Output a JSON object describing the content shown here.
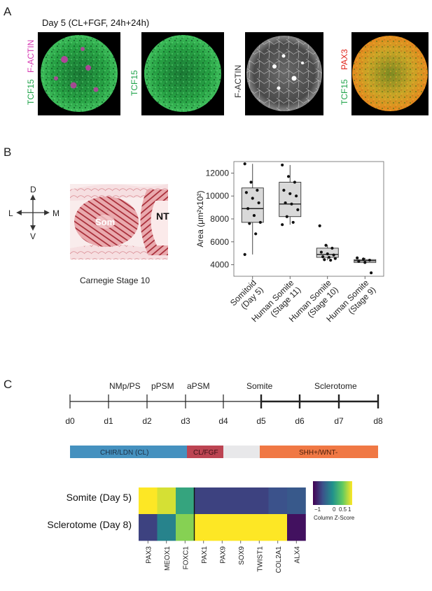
{
  "panel_a": {
    "letter": "A",
    "title": "Day 5 (CL+FGF, 24h+24h)",
    "images": [
      {
        "labels": [
          {
            "text": "TCF15",
            "color": "#1fa34a"
          },
          {
            "text": "F-ACTIN",
            "color": "#d63bb3"
          }
        ]
      },
      {
        "labels": [
          {
            "text": "TCF15",
            "color": "#1fa34a"
          }
        ]
      },
      {
        "labels": [
          {
            "text": "F-ACTIN",
            "color": "#333333"
          }
        ]
      },
      {
        "labels": [
          {
            "text": "TCF15",
            "color": "#1fa34a"
          },
          {
            "text": "PAX3",
            "color": "#e0261c"
          }
        ]
      }
    ]
  },
  "panel_b": {
    "letter": "B",
    "axes_cross": {
      "up": "D",
      "down": "V",
      "left": "L",
      "right": "M"
    },
    "histology": {
      "label_som": "Som",
      "label_nt": "NT",
      "caption": "Carnegie Stage 10"
    }
  },
  "panel_c": {
    "letter": "C",
    "timeline": {
      "days": [
        "d0",
        "d1",
        "d2",
        "d3",
        "d4",
        "d5",
        "d6",
        "d7",
        "d8"
      ],
      "stages": [
        "NMp/PS",
        "pPSM",
        "aPSM",
        "Somite",
        "Sclerotome"
      ]
    },
    "conditions": [
      {
        "label": "CHIR/LDN (CL)",
        "color": "#4591bf"
      },
      {
        "label": "CL/FGF",
        "color": "#bc4452"
      },
      {
        "label": "",
        "color": "#e8e8ea"
      },
      {
        "label": "SHH+/WNT-",
        "color": "#f07844"
      }
    ],
    "heatmap": {
      "rows": [
        "Somite (Day 5)",
        "Sclerotome (Day 8)"
      ],
      "cols": [
        "PAX3",
        "MEOX1",
        "FOXC1",
        "PAX1",
        "PAX9",
        "SOX9",
        "TWIST1",
        "COL2A1",
        "ALX4"
      ],
      "z": [
        [
          1,
          0.9,
          0.2,
          -1,
          -1,
          -1,
          -1,
          -0.9,
          -0.8
        ],
        [
          -1,
          -0.2,
          0.7,
          1,
          1,
          1,
          1,
          1,
          -1.3
        ]
      ],
      "colorkey": {
        "title": "Column Z-Score",
        "ticks": [
          "−1",
          "0",
          "0.5",
          "1"
        ]
      }
    }
  },
  "chart_data": {
    "type": "box",
    "ylabel": "Area (μm²x10²)",
    "ylim": [
      3000,
      13000
    ],
    "yticks": [
      "4000",
      "6000",
      "8000",
      "10000",
      "12000"
    ],
    "categories": [
      {
        "lines": [
          "Somitoid",
          "(Day 5)"
        ]
      },
      {
        "lines": [
          "Human Somite",
          "(Stage 11)"
        ]
      },
      {
        "lines": [
          "Human Somite",
          "(Stage 10)"
        ]
      },
      {
        "lines": [
          "Human Somite",
          "(Stage 9)"
        ]
      }
    ],
    "boxes": [
      {
        "min": 4900,
        "q1": 7700,
        "median": 8900,
        "q3": 10700,
        "max": 12800
      },
      {
        "min": 7500,
        "q1": 8200,
        "median": 9300,
        "q3": 11200,
        "max": 12700
      },
      {
        "min": 4400,
        "q1": 4650,
        "median": 4900,
        "q3": 5450,
        "max": 5700
      },
      {
        "min": 4100,
        "q1": 4200,
        "median": 4350,
        "q3": 4450,
        "max": 4600
      }
    ],
    "points": [
      [
        12800,
        11200,
        10500,
        10300,
        9800,
        9400,
        8900,
        8300,
        7700,
        7600,
        6700,
        4900
      ],
      [
        12700,
        11700,
        11200,
        10500,
        10200,
        10000,
        9400,
        9300,
        8800,
        8200,
        7700,
        7500
      ],
      [
        7400,
        5700,
        5450,
        5100,
        4950,
        4850,
        4700,
        4650,
        4550,
        4450,
        4400
      ],
      [
        4600,
        4500,
        4400,
        4300,
        4200,
        3300
      ]
    ]
  }
}
